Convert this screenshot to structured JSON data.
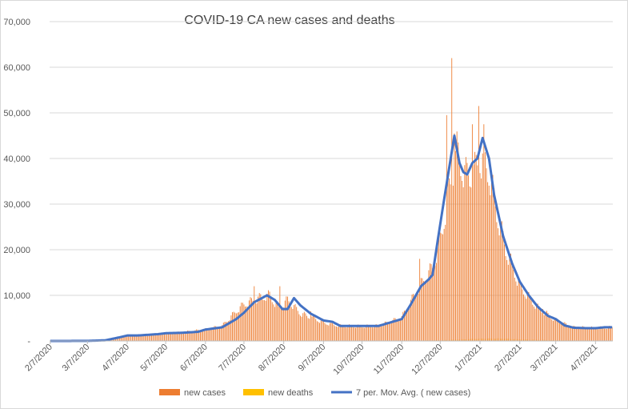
{
  "colors": {
    "cases": "#ED7D31",
    "deaths": "#FFC000",
    "avg": "#4472C4",
    "grid": "#D9D9D9",
    "axis": "#BFBFBF",
    "border": "#D9D9D9"
  },
  "chart_data": {
    "type": "bar",
    "title": "COVID-19 CA new cases and deaths",
    "xlabel": "",
    "ylabel": "",
    "ylim": [
      0,
      70000
    ],
    "yticks": [
      0,
      10000,
      20000,
      30000,
      40000,
      50000,
      60000,
      70000
    ],
    "ytick_labels": [
      "-",
      "10,000",
      "20,000",
      "30,000",
      "40,000",
      "50,000",
      "60,000",
      "70,000"
    ],
    "grid": true,
    "legend": "bottom",
    "x_start": "2/7/2020",
    "x_end": "4/20/2021",
    "xticks": [
      "2/7/2020",
      "3/7/2020",
      "4/7/2020",
      "5/7/2020",
      "6/7/2020",
      "7/7/2020",
      "8/7/2020",
      "9/7/2020",
      "10/7/2020",
      "11/7/2020",
      "12/7/2020",
      "1/7/2021",
      "2/7/2021",
      "3/7/2021",
      "4/7/2021"
    ],
    "series": [
      {
        "name": "new cases",
        "kind": "bar",
        "anchors": [
          [
            "2/7/2020",
            0
          ],
          [
            "3/7/2020",
            20
          ],
          [
            "3/21/2020",
            250
          ],
          [
            "4/1/2020",
            900
          ],
          [
            "4/7/2020",
            1200
          ],
          [
            "4/20/2020",
            1200
          ],
          [
            "5/7/2020",
            1600
          ],
          [
            "5/20/2020",
            1900
          ],
          [
            "6/7/2020",
            2500
          ],
          [
            "6/20/2020",
            3300
          ],
          [
            "7/1/2020",
            6500
          ],
          [
            "7/7/2020",
            8000
          ],
          [
            "7/20/2020",
            9500
          ],
          [
            "7/27/2020",
            10000
          ],
          [
            "8/3/2020",
            7000
          ],
          [
            "8/10/2020",
            9000
          ],
          [
            "8/20/2020",
            6000
          ],
          [
            "9/1/2020",
            4800
          ],
          [
            "9/7/2020",
            4000
          ],
          [
            "9/20/2020",
            3300
          ],
          [
            "10/7/2020",
            3200
          ],
          [
            "10/20/2020",
            3300
          ],
          [
            "11/1/2020",
            4500
          ],
          [
            "11/7/2020",
            5200
          ],
          [
            "11/20/2020",
            11500
          ],
          [
            "12/1/2020",
            16000
          ],
          [
            "12/7/2020",
            22000
          ],
          [
            "12/14/2020",
            33000
          ],
          [
            "12/20/2020",
            41000
          ],
          [
            "12/27/2020",
            36000
          ],
          [
            "1/3/2021",
            37000
          ],
          [
            "1/7/2021",
            40000
          ],
          [
            "1/14/2021",
            37000
          ],
          [
            "1/20/2021",
            28000
          ],
          [
            "1/27/2021",
            20000
          ],
          [
            "2/7/2021",
            12000
          ],
          [
            "2/20/2021",
            7500
          ],
          [
            "3/7/2021",
            4500
          ],
          [
            "3/20/2021",
            3000
          ],
          [
            "4/7/2021",
            2800
          ],
          [
            "4/20/2021",
            3000
          ]
        ],
        "spikes": [
          [
            "7/15/2020",
            12000
          ],
          [
            "8/4/2020",
            12000
          ],
          [
            "8/28/2020",
            6500
          ],
          [
            "11/10/2020",
            6000
          ],
          [
            "11/21/2020",
            18000
          ],
          [
            "12/12/2020",
            49500
          ],
          [
            "12/16/2020",
            62000
          ],
          [
            "12/18/2020",
            45500
          ],
          [
            "1/1/2021",
            47500
          ],
          [
            "1/6/2021",
            51500
          ],
          [
            "1/10/2021",
            47500
          ],
          [
            "2/25/2021",
            7000
          ]
        ]
      },
      {
        "name": "new deaths",
        "kind": "bar",
        "anchors": [
          [
            "2/7/2020",
            0
          ],
          [
            "4/7/2020",
            50
          ],
          [
            "5/7/2020",
            80
          ],
          [
            "6/7/2020",
            70
          ],
          [
            "7/7/2020",
            100
          ],
          [
            "8/7/2020",
            150
          ],
          [
            "9/7/2020",
            100
          ],
          [
            "10/7/2020",
            80
          ],
          [
            "11/7/2020",
            60
          ],
          [
            "12/7/2020",
            150
          ],
          [
            "1/7/2021",
            500
          ],
          [
            "1/20/2021",
            550
          ],
          [
            "2/7/2021",
            350
          ],
          [
            "3/7/2021",
            150
          ],
          [
            "4/7/2021",
            80
          ],
          [
            "4/20/2021",
            70
          ]
        ]
      },
      {
        "name": "7 per. Mov. Avg. ( new cases)",
        "kind": "line",
        "anchors": [
          [
            "2/7/2020",
            0
          ],
          [
            "3/7/2020",
            20
          ],
          [
            "3/21/2020",
            150
          ],
          [
            "4/1/2020",
            800
          ],
          [
            "4/7/2020",
            1200
          ],
          [
            "4/15/2020",
            1200
          ],
          [
            "5/1/2020",
            1500
          ],
          [
            "5/7/2020",
            1700
          ],
          [
            "5/20/2020",
            1800
          ],
          [
            "6/1/2020",
            2000
          ],
          [
            "6/7/2020",
            2500
          ],
          [
            "6/20/2020",
            3000
          ],
          [
            "7/1/2020",
            4800
          ],
          [
            "7/7/2020",
            6200
          ],
          [
            "7/15/2020",
            8500
          ],
          [
            "7/25/2020",
            10000
          ],
          [
            "7/31/2020",
            9000
          ],
          [
            "8/6/2020",
            7000
          ],
          [
            "8/10/2020",
            7000
          ],
          [
            "8/15/2020",
            9400
          ],
          [
            "8/20/2020",
            7800
          ],
          [
            "8/28/2020",
            6000
          ],
          [
            "9/7/2020",
            4500
          ],
          [
            "9/14/2020",
            4200
          ],
          [
            "9/20/2020",
            3300
          ],
          [
            "10/7/2020",
            3300
          ],
          [
            "10/20/2020",
            3300
          ],
          [
            "11/1/2020",
            4300
          ],
          [
            "11/7/2020",
            4800
          ],
          [
            "11/14/2020",
            8000
          ],
          [
            "11/22/2020",
            12000
          ],
          [
            "11/28/2020",
            13500
          ],
          [
            "12/1/2020",
            14500
          ],
          [
            "12/5/2020",
            22000
          ],
          [
            "12/10/2020",
            31000
          ],
          [
            "12/14/2020",
            38000
          ],
          [
            "12/18/2020",
            45000
          ],
          [
            "12/22/2020",
            39000
          ],
          [
            "12/25/2020",
            37000
          ],
          [
            "12/28/2020",
            36500
          ],
          [
            "1/1/2021",
            39000
          ],
          [
            "1/5/2021",
            40000
          ],
          [
            "1/9/2021",
            44500
          ],
          [
            "1/14/2021",
            40000
          ],
          [
            "1/18/2021",
            32000
          ],
          [
            "1/25/2021",
            23000
          ],
          [
            "2/1/2021",
            17000
          ],
          [
            "2/7/2021",
            13000
          ],
          [
            "2/14/2021",
            10000
          ],
          [
            "2/21/2021",
            7500
          ],
          [
            "3/1/2021",
            5500
          ],
          [
            "3/7/2021",
            4800
          ],
          [
            "3/14/2021",
            3400
          ],
          [
            "3/21/2021",
            2900
          ],
          [
            "4/1/2021",
            2800
          ],
          [
            "4/7/2021",
            2800
          ],
          [
            "4/14/2021",
            3000
          ],
          [
            "4/20/2021",
            3000
          ]
        ]
      }
    ]
  }
}
